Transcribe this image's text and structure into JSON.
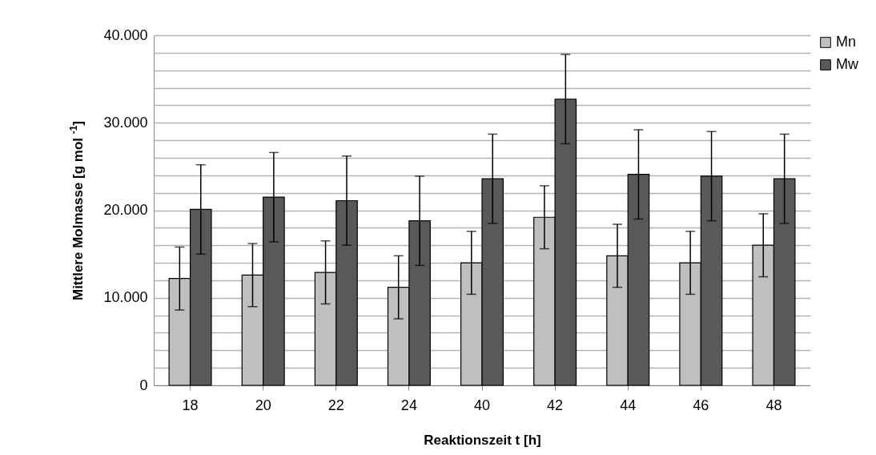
{
  "chart_data": {
    "type": "bar",
    "xlabel": "Reaktionszeit t [h]",
    "ylabel": "Mittlere Molmasse [g mol $^{-1}$]",
    "categories": [
      "18",
      "20",
      "22",
      "24",
      "40",
      "42",
      "44",
      "46",
      "48"
    ],
    "series": [
      {
        "name": "Mn",
        "color": "#bfbfbf",
        "values": [
          12200,
          12600,
          12900,
          11200,
          14000,
          19200,
          14800,
          14000,
          16000
        ],
        "errors": [
          3600,
          3600,
          3600,
          3600,
          3600,
          3600,
          3600,
          3600,
          3600
        ]
      },
      {
        "name": "Mw",
        "color": "#595959",
        "values": [
          20100,
          21500,
          21100,
          18800,
          23600,
          32700,
          24100,
          23900,
          23600
        ],
        "errors": [
          5100,
          5100,
          5100,
          5100,
          5100,
          5100,
          5100,
          5100,
          5100
        ]
      }
    ],
    "ylim": [
      0,
      40000
    ],
    "yticks": [
      {
        "value": 0,
        "label": "0"
      },
      {
        "value": 2000,
        "label": null
      },
      {
        "value": 4000,
        "label": null
      },
      {
        "value": 6000,
        "label": null
      },
      {
        "value": 8000,
        "label": null
      },
      {
        "value": 10000,
        "label": "10.000"
      },
      {
        "value": 12000,
        "label": null
      },
      {
        "value": 14000,
        "label": null
      },
      {
        "value": 16000,
        "label": null
      },
      {
        "value": 18000,
        "label": null
      },
      {
        "value": 20000,
        "label": "20.000"
      },
      {
        "value": 22000,
        "label": null
      },
      {
        "value": 24000,
        "label": null
      },
      {
        "value": 26000,
        "label": null
      },
      {
        "value": 28000,
        "label": null
      },
      {
        "value": 30000,
        "label": "30.000"
      },
      {
        "value": 32000,
        "label": null
      },
      {
        "value": 34000,
        "label": null
      },
      {
        "value": 36000,
        "label": null
      },
      {
        "value": 38000,
        "label": null
      },
      {
        "value": 40000,
        "label": "40.000"
      }
    ],
    "grid": true,
    "legend": "top right"
  }
}
